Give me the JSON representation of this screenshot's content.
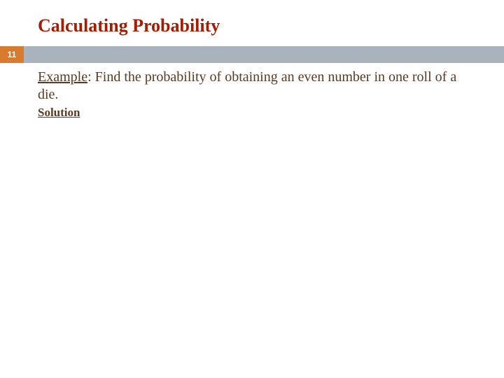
{
  "slide": {
    "title": "Calculating Probability",
    "title_color": "#a61c00",
    "page_number": "11",
    "bar_orange_bg": "#d97b2f",
    "bar_gray_bg": "#a8b3be",
    "example_label": "Example",
    "example_text": ": Find the probability of obtaining an even number in one roll of a die.",
    "solution_label": "Solution",
    "body_color": "#5b3a1f",
    "background_color": "#ffffff",
    "title_fontsize": 26,
    "body_fontsize": 20,
    "solution_fontsize": 17
  }
}
